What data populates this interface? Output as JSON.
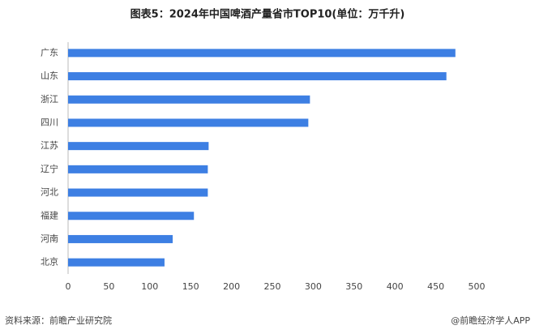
{
  "chart_data": {
    "type": "bar",
    "orientation": "horizontal",
    "title": "图表5：2024年中国啤酒产量省市TOP10(单位：万千升)",
    "categories": [
      "广东",
      "山东",
      "浙江",
      "四川",
      "江苏",
      "辽宁",
      "河北",
      "福建",
      "河南",
      "北京"
    ],
    "values": [
      474,
      463,
      296,
      294,
      172,
      171,
      171,
      154,
      128,
      118
    ],
    "color": "#3d7fe3",
    "xlim": [
      0,
      500
    ],
    "xticks": [
      0,
      50,
      100,
      150,
      200,
      250,
      300,
      350,
      400,
      450,
      500
    ],
    "grid": false,
    "source": "资料来源：前瞻产业研究院",
    "credit": "@前瞻经济学人APP"
  }
}
